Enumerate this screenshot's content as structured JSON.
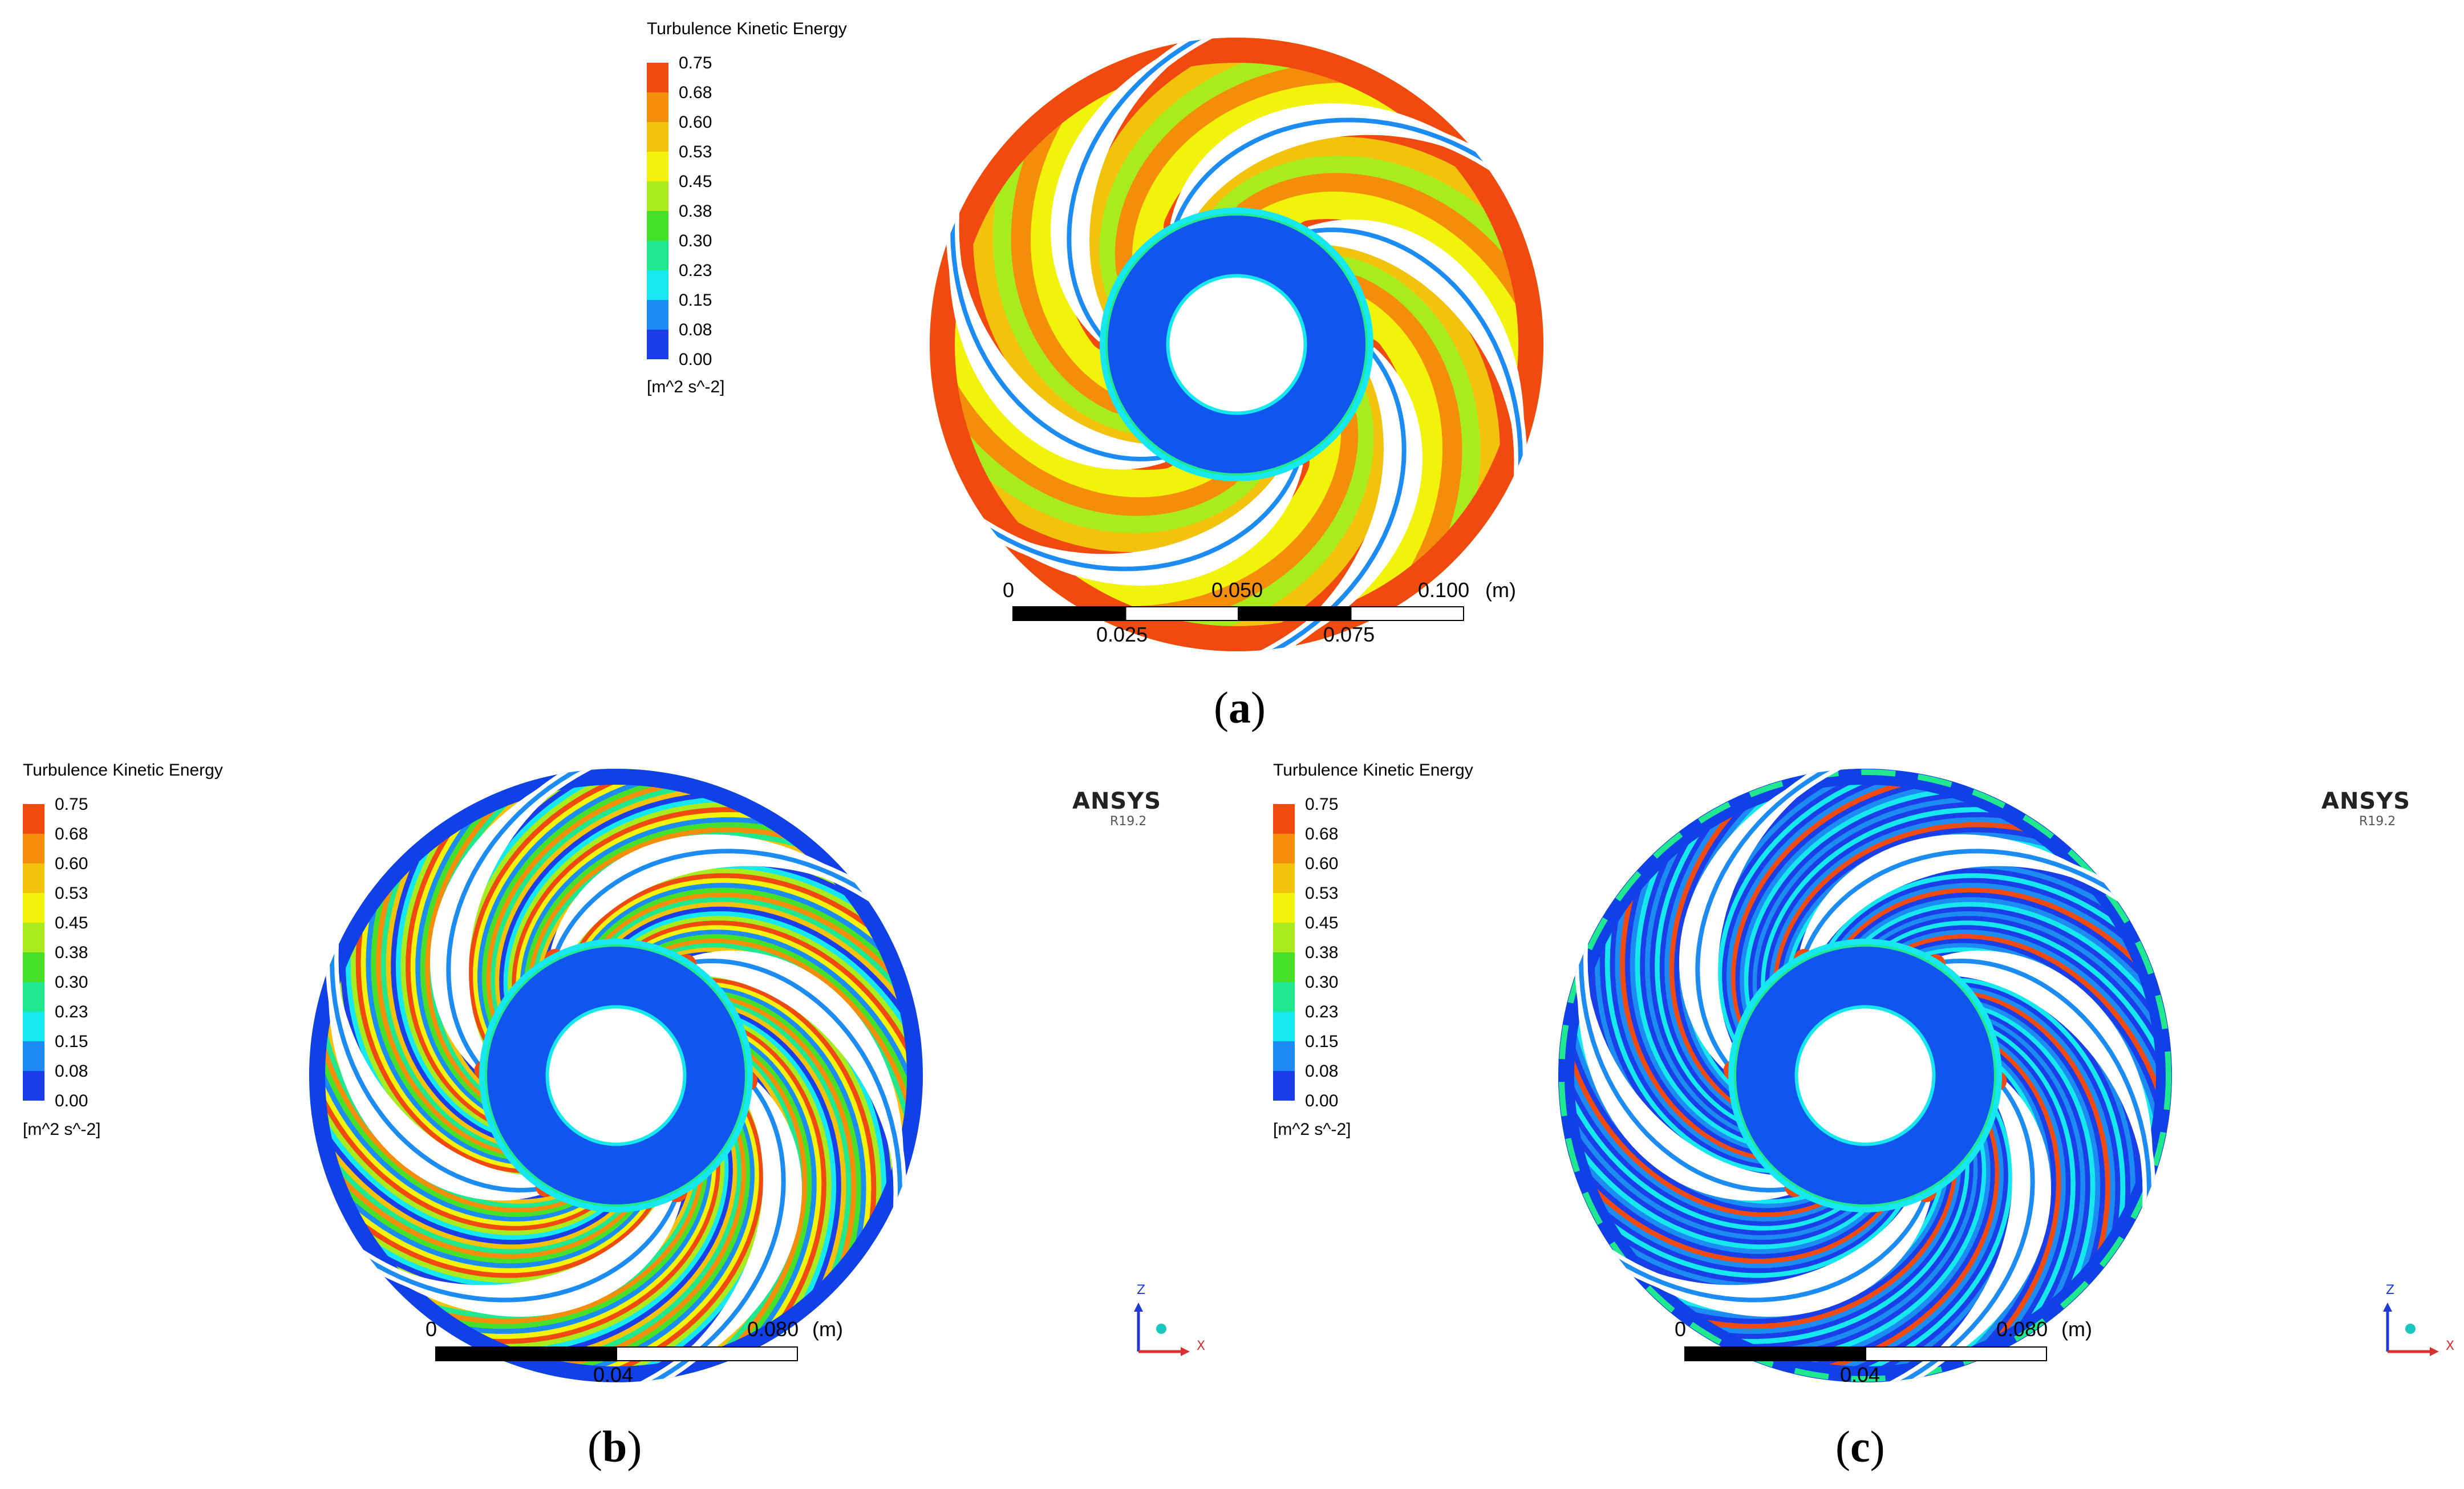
{
  "colors": {
    "band": [
      "#1a3ee8",
      "#1c8cf2",
      "#16e8f0",
      "#1fe88e",
      "#46e02a",
      "#a8ec1e",
      "#f2f20a",
      "#f2c20c",
      "#f48e0a",
      "#f04a10"
    ],
    "blade": "#ffffff",
    "hub": "#1055ee",
    "ring": "#1040e8"
  },
  "panels": [
    {
      "id": "a",
      "caption_letter": "a",
      "legend": {
        "title": "Turbulence Kinetic Energy",
        "ticks": [
          "0.75",
          "0.68",
          "0.60",
          "0.53",
          "0.45",
          "0.38",
          "0.30",
          "0.23",
          "0.15",
          "0.08",
          "0.00"
        ],
        "unit": "[m^2 s^-2]"
      },
      "scale_bar": {
        "top_labels": [
          "0",
          "0.050",
          "0.100"
        ],
        "bottom_labels": [
          "0.025",
          "0.075"
        ],
        "unit": "(m)"
      },
      "blade_count": 6,
      "pattern": "coarse-hot"
    },
    {
      "id": "b",
      "caption_letter": "b",
      "legend": {
        "title": "Turbulence Kinetic Energy",
        "ticks": [
          "0.75",
          "0.68",
          "0.60",
          "0.53",
          "0.45",
          "0.38",
          "0.30",
          "0.23",
          "0.15",
          "0.08",
          "0.00"
        ],
        "unit": "[m^2 s^-2]"
      },
      "scale_bar": {
        "top_labels": [
          "0",
          "0.080"
        ],
        "bottom_labels": [
          "0.04"
        ],
        "unit": "(m)"
      },
      "brand": "ANSYS",
      "brand_version": "R19.2",
      "axis": {
        "z": "Z",
        "x": "X"
      },
      "blade_count": 6,
      "pattern": "striped-warm"
    },
    {
      "id": "c",
      "caption_letter": "c",
      "legend": {
        "title": "Turbulence Kinetic Energy",
        "ticks": [
          "0.75",
          "0.68",
          "0.60",
          "0.53",
          "0.45",
          "0.38",
          "0.30",
          "0.23",
          "0.15",
          "0.08",
          "0.00"
        ],
        "unit": "[m^2 s^-2]"
      },
      "scale_bar": {
        "top_labels": [
          "0",
          "0.080"
        ],
        "bottom_labels": [
          "0.04"
        ],
        "unit": "(m)"
      },
      "brand": "ANSYS",
      "brand_version": "R19.2",
      "axis": {
        "z": "Z",
        "x": "X"
      },
      "blade_count": 6,
      "pattern": "striped-cool"
    }
  ]
}
